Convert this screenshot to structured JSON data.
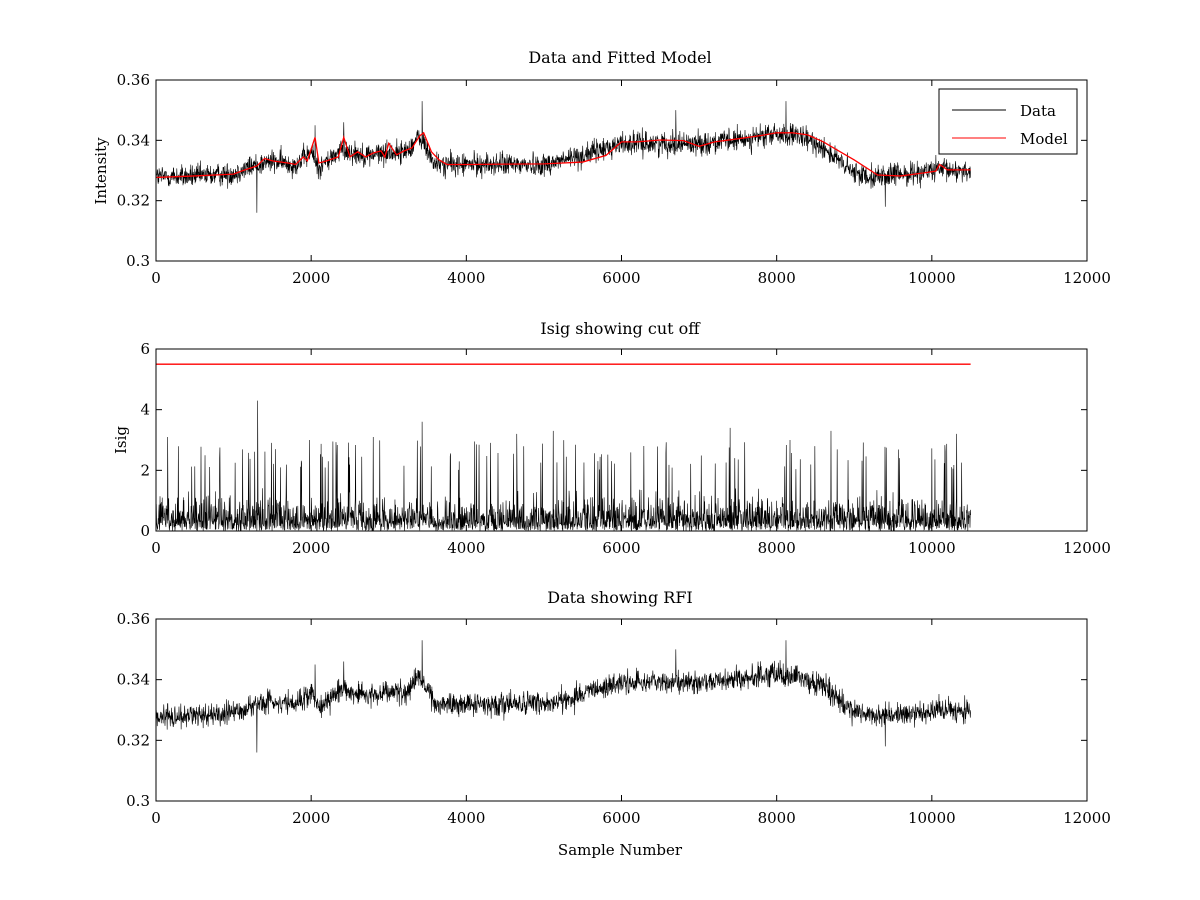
{
  "chart_data": [
    {
      "type": "line",
      "title": "Data and Fitted Model",
      "xlabel": "",
      "ylabel": "Intensity",
      "xlim": [
        0,
        12000
      ],
      "ylim": [
        0.3,
        0.36
      ],
      "xticks": [
        0,
        2000,
        4000,
        6000,
        8000,
        10000,
        12000
      ],
      "xtick_labels": [
        "0",
        "2000",
        "4000",
        "6000",
        "8000",
        "10000",
        "12000"
      ],
      "yticks": [
        0.3,
        0.32,
        0.34,
        0.36
      ],
      "ytick_labels": [
        "0.3",
        "0.32",
        "0.34",
        "0.36"
      ],
      "legend": {
        "placement": "top-right",
        "entries": [
          "Data",
          "Model"
        ]
      },
      "series": [
        {
          "name": "Data",
          "color": "#000000",
          "style": "noisy",
          "noise_amplitude": 0.005,
          "x_range": [
            0,
            10500
          ],
          "baseline": {
            "x": [
              0,
              500,
              1000,
              1300,
              1500,
              1800,
              2000,
              2100,
              2400,
              2700,
              3000,
              3200,
              3400,
              3600,
              3800,
              4500,
              5000,
              5500,
              6000,
              6500,
              7000,
              7500,
              8000,
              8300,
              8600,
              8800,
              9000,
              9300,
              9700,
              10000,
              10500
            ],
            "y": [
              0.328,
              0.328,
              0.329,
              0.332,
              0.333,
              0.332,
              0.336,
              0.331,
              0.337,
              0.335,
              0.336,
              0.336,
              0.341,
              0.332,
              0.332,
              0.332,
              0.332,
              0.335,
              0.339,
              0.339,
              0.339,
              0.34,
              0.342,
              0.341,
              0.338,
              0.333,
              0.329,
              0.328,
              0.329,
              0.33,
              0.33
            ]
          },
          "spikes": [
            {
              "x": 1300,
              "y": 0.316
            },
            {
              "x": 2050,
              "y": 0.345
            },
            {
              "x": 2420,
              "y": 0.346
            },
            {
              "x": 3430,
              "y": 0.353
            },
            {
              "x": 6700,
              "y": 0.35
            },
            {
              "x": 8120,
              "y": 0.353
            },
            {
              "x": 9400,
              "y": 0.318
            }
          ]
        },
        {
          "name": "Model",
          "color": "#ff0000",
          "style": "line",
          "x": [
            0,
            500,
            1000,
            1100,
            1300,
            1400,
            1500,
            1700,
            1800,
            1900,
            1950,
            2050,
            2100,
            2200,
            2350,
            2420,
            2500,
            2600,
            2700,
            2800,
            2900,
            2950,
            3000,
            3100,
            3200,
            3300,
            3400,
            3450,
            3550,
            3650,
            3750,
            4000,
            4500,
            5000,
            5500,
            5800,
            6000,
            6200,
            6500,
            6800,
            7000,
            7200,
            7500,
            7800,
            8000,
            8200,
            8400,
            8600,
            8800,
            9000,
            9300,
            9600,
            9900,
            10050,
            10100,
            10200,
            10500
          ],
          "y": [
            0.3277,
            0.3282,
            0.3288,
            0.3298,
            0.3315,
            0.334,
            0.3332,
            0.3325,
            0.332,
            0.3345,
            0.3332,
            0.341,
            0.3325,
            0.3332,
            0.3345,
            0.341,
            0.3345,
            0.3362,
            0.3345,
            0.3358,
            0.3365,
            0.3345,
            0.339,
            0.3352,
            0.3365,
            0.3375,
            0.3415,
            0.3425,
            0.3362,
            0.3335,
            0.332,
            0.332,
            0.3321,
            0.3322,
            0.3328,
            0.335,
            0.3395,
            0.3395,
            0.3401,
            0.3399,
            0.338,
            0.3395,
            0.3405,
            0.3416,
            0.3425,
            0.3425,
            0.3418,
            0.3395,
            0.3365,
            0.3335,
            0.3285,
            0.3282,
            0.3292,
            0.3298,
            0.332,
            0.3302,
            0.3302
          ]
        }
      ]
    },
    {
      "type": "line",
      "title": "Isig showing cut off",
      "xlabel": "",
      "ylabel": "Isig",
      "xlim": [
        0,
        12000
      ],
      "ylim": [
        0,
        6
      ],
      "xticks": [
        0,
        2000,
        4000,
        6000,
        8000,
        10000,
        12000
      ],
      "xtick_labels": [
        "0",
        "2000",
        "4000",
        "6000",
        "8000",
        "10000",
        "12000"
      ],
      "yticks": [
        0,
        2,
        4,
        6
      ],
      "ytick_labels": [
        "0",
        "2",
        "4",
        "6"
      ],
      "series": [
        {
          "color": "#000000",
          "style": "abs-noise",
          "x_range": [
            0,
            10500
          ],
          "typical_max": 2.5,
          "spikes": [
            {
              "x": 150,
              "y": 3.1
            },
            {
              "x": 1310,
              "y": 4.3
            },
            {
              "x": 1980,
              "y": 3.0
            },
            {
              "x": 2800,
              "y": 3.1
            },
            {
              "x": 3430,
              "y": 3.6
            },
            {
              "x": 4650,
              "y": 3.2
            },
            {
              "x": 5120,
              "y": 3.3
            },
            {
              "x": 7400,
              "y": 3.4
            },
            {
              "x": 8700,
              "y": 3.3
            },
            {
              "x": 10320,
              "y": 3.2
            }
          ]
        },
        {
          "color": "#ff0000",
          "style": "line",
          "x": [
            0,
            10500
          ],
          "y": [
            5.5,
            5.5
          ]
        }
      ]
    },
    {
      "type": "line",
      "title": "Data showing RFI",
      "xlabel": "Sample Number",
      "ylabel": "",
      "xlim": [
        0,
        12000
      ],
      "ylim": [
        0.3,
        0.36
      ],
      "xticks": [
        0,
        2000,
        4000,
        6000,
        8000,
        10000,
        12000
      ],
      "xtick_labels": [
        "0",
        "2000",
        "4000",
        "6000",
        "8000",
        "10000",
        "12000"
      ],
      "yticks": [
        0.3,
        0.32,
        0.34,
        0.36
      ],
      "ytick_labels": [
        "0.3",
        "0.32",
        "0.34",
        "0.36"
      ],
      "series": [
        {
          "color": "#000000",
          "style": "noisy",
          "noise_amplitude": 0.005,
          "x_range": [
            0,
            10500
          ],
          "baseline": {
            "x": [
              0,
              500,
              1000,
              1300,
              1500,
              1800,
              2000,
              2100,
              2400,
              2700,
              3000,
              3200,
              3400,
              3600,
              3800,
              4500,
              5000,
              5500,
              6000,
              6500,
              7000,
              7500,
              8000,
              8300,
              8600,
              8800,
              9000,
              9300,
              9700,
              10000,
              10500
            ],
            "y": [
              0.328,
              0.328,
              0.329,
              0.332,
              0.333,
              0.332,
              0.336,
              0.331,
              0.337,
              0.335,
              0.336,
              0.336,
              0.341,
              0.332,
              0.332,
              0.332,
              0.332,
              0.335,
              0.339,
              0.339,
              0.339,
              0.34,
              0.342,
              0.341,
              0.338,
              0.333,
              0.329,
              0.328,
              0.329,
              0.33,
              0.33
            ]
          },
          "spikes": [
            {
              "x": 1300,
              "y": 0.316
            },
            {
              "x": 2050,
              "y": 0.345
            },
            {
              "x": 2420,
              "y": 0.346
            },
            {
              "x": 3430,
              "y": 0.353
            },
            {
              "x": 6700,
              "y": 0.35
            },
            {
              "x": 8120,
              "y": 0.353
            },
            {
              "x": 9400,
              "y": 0.318
            }
          ]
        }
      ]
    }
  ]
}
